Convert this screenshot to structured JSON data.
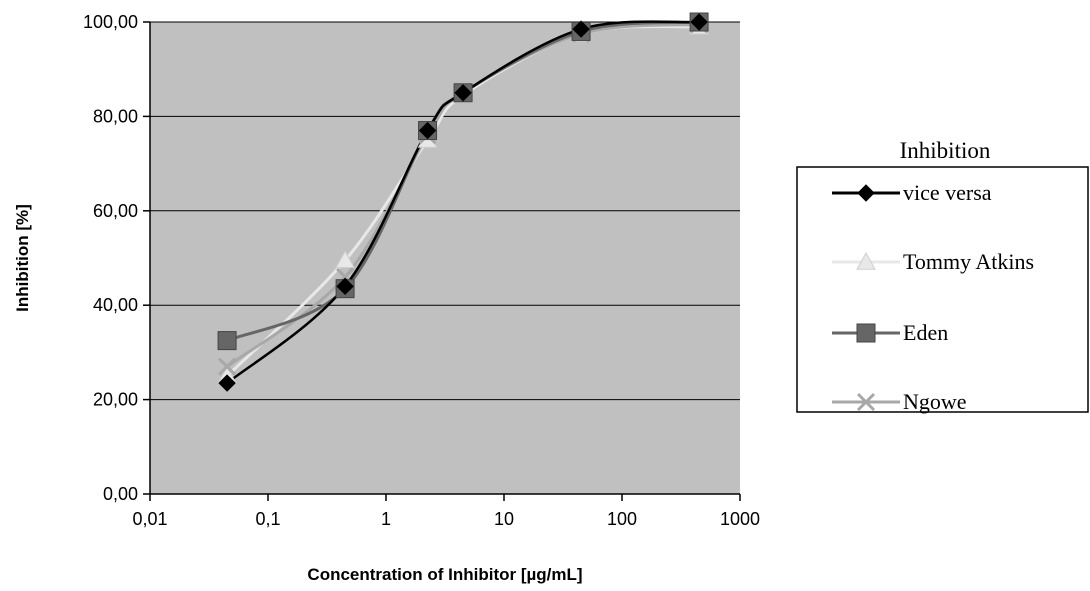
{
  "chart_data": {
    "type": "line",
    "title": "",
    "xlabel": "Concentration of Inhibitor [µg/mL]",
    "ylabel": "Inhibition [%]",
    "xscale": "log",
    "xlim": [
      0.01,
      1000
    ],
    "ylim": [
      0,
      100
    ],
    "x_ticks": [
      0.01,
      0.1,
      1,
      10,
      100,
      1000
    ],
    "x_tick_labels": [
      "0,01",
      "0,1",
      "1",
      "10",
      "100",
      "1000"
    ],
    "y_ticks": [
      0,
      20,
      40,
      60,
      80,
      100
    ],
    "y_tick_labels": [
      "0,00",
      "20,00",
      "40,00",
      "60,00",
      "80,00",
      "100,00"
    ],
    "grid": "horizontal",
    "plot_background": "#c0c0c0",
    "legend": {
      "title": "Inhibition",
      "position": "right",
      "entries": [
        "vice versa",
        "Tommy Atkins",
        "Eden",
        "Ngowe"
      ]
    },
    "series": [
      {
        "name": "vice versa",
        "color": "#000000",
        "marker": "diamond",
        "points": [
          [
            0.045,
            23.5
          ],
          [
            0.45,
            44.0
          ],
          [
            2.25,
            77.0
          ],
          [
            4.5,
            85.0
          ],
          [
            45,
            98.5
          ],
          [
            450,
            100.0
          ]
        ]
      },
      {
        "name": "Tommy Atkins",
        "color": "#e8e8e8",
        "marker": "triangle",
        "points": [
          [
            0.045,
            25.0
          ],
          [
            0.45,
            49.5
          ],
          [
            2.25,
            75.0
          ],
          [
            4.5,
            84.5
          ],
          [
            45,
            97.5
          ],
          [
            450,
            99.0
          ]
        ]
      },
      {
        "name": "Eden",
        "color": "#666666",
        "marker": "square",
        "points": [
          [
            0.045,
            32.5
          ],
          [
            0.45,
            43.5
          ],
          [
            2.25,
            77.0
          ],
          [
            4.5,
            85.0
          ],
          [
            45,
            98.0
          ],
          [
            450,
            100.0
          ]
        ]
      },
      {
        "name": "Ngowe",
        "color": "#a8a8a8",
        "marker": "x",
        "points": [
          [
            0.045,
            27.0
          ],
          [
            0.45,
            46.0
          ],
          [
            2.25,
            76.0
          ],
          [
            4.5,
            85.0
          ],
          [
            45,
            97.5
          ],
          [
            450,
            99.5
          ]
        ]
      }
    ]
  }
}
